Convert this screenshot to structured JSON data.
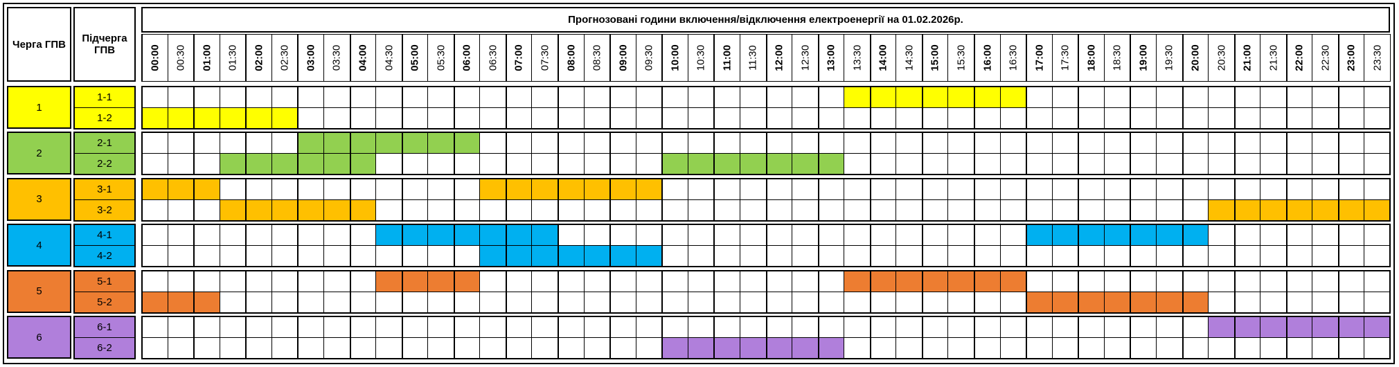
{
  "header": {
    "queue_label": "Черга ГПВ",
    "subqueue_label": "Підчерга ГПВ",
    "title": "Прогнозовані години включення/відключення електроенергії на 01.02.2026р."
  },
  "times": [
    "00:00",
    "00:30",
    "01:00",
    "01:30",
    "02:00",
    "02:30",
    "03:00",
    "03:30",
    "04:00",
    "04:30",
    "05:00",
    "05:30",
    "06:00",
    "06:30",
    "07:00",
    "07:30",
    "08:00",
    "08:30",
    "09:00",
    "09:30",
    "10:00",
    "10:30",
    "11:00",
    "11:30",
    "12:00",
    "12:30",
    "13:00",
    "13:30",
    "14:00",
    "14:30",
    "15:00",
    "15:30",
    "16:00",
    "16:30",
    "17:00",
    "17:30",
    "18:00",
    "18:30",
    "19:00",
    "19:30",
    "20:00",
    "20:30",
    "21:00",
    "21:30",
    "22:00",
    "22:30",
    "23:00",
    "23:30"
  ],
  "groups": [
    {
      "name": "1",
      "color": "#ffff00",
      "subqueues": [
        {
          "name": "1-1",
          "slots": [
            0,
            0,
            0,
            0,
            0,
            0,
            0,
            0,
            0,
            0,
            0,
            0,
            0,
            0,
            0,
            0,
            0,
            0,
            0,
            0,
            0,
            0,
            0,
            0,
            0,
            0,
            0,
            1,
            1,
            1,
            1,
            1,
            1,
            1,
            0,
            0,
            0,
            0,
            0,
            0,
            0,
            0,
            0,
            0,
            0,
            0,
            0,
            0
          ]
        },
        {
          "name": "1-2",
          "slots": [
            1,
            1,
            1,
            1,
            1,
            1,
            0,
            0,
            0,
            0,
            0,
            0,
            0,
            0,
            0,
            0,
            0,
            0,
            0,
            0,
            0,
            0,
            0,
            0,
            0,
            0,
            0,
            0,
            0,
            0,
            0,
            0,
            0,
            0,
            0,
            0,
            0,
            0,
            0,
            0,
            0,
            0,
            0,
            0,
            0,
            0,
            0,
            0
          ]
        }
      ]
    },
    {
      "name": "2",
      "color": "#92d050",
      "subqueues": [
        {
          "name": "2-1",
          "slots": [
            0,
            0,
            0,
            0,
            0,
            0,
            1,
            1,
            1,
            1,
            1,
            1,
            1,
            0,
            0,
            0,
            0,
            0,
            0,
            0,
            0,
            0,
            0,
            0,
            0,
            0,
            0,
            0,
            0,
            0,
            0,
            0,
            0,
            0,
            0,
            0,
            0,
            0,
            0,
            0,
            0,
            0,
            0,
            0,
            0,
            0,
            0,
            0
          ]
        },
        {
          "name": "2-2",
          "slots": [
            0,
            0,
            0,
            1,
            1,
            1,
            1,
            1,
            1,
            0,
            0,
            0,
            0,
            0,
            0,
            0,
            0,
            0,
            0,
            0,
            1,
            1,
            1,
            1,
            1,
            1,
            1,
            0,
            0,
            0,
            0,
            0,
            0,
            0,
            0,
            0,
            0,
            0,
            0,
            0,
            0,
            0,
            0,
            0,
            0,
            0,
            0,
            0
          ]
        }
      ]
    },
    {
      "name": "3",
      "color": "#ffc000",
      "subqueues": [
        {
          "name": "3-1",
          "slots": [
            1,
            1,
            1,
            0,
            0,
            0,
            0,
            0,
            0,
            0,
            0,
            0,
            0,
            1,
            1,
            1,
            1,
            1,
            1,
            1,
            0,
            0,
            0,
            0,
            0,
            0,
            0,
            0,
            0,
            0,
            0,
            0,
            0,
            0,
            0,
            0,
            0,
            0,
            0,
            0,
            0,
            0,
            0,
            0,
            0,
            0,
            0,
            0
          ]
        },
        {
          "name": "3-2",
          "slots": [
            0,
            0,
            0,
            1,
            1,
            1,
            1,
            1,
            1,
            0,
            0,
            0,
            0,
            0,
            0,
            0,
            0,
            0,
            0,
            0,
            0,
            0,
            0,
            0,
            0,
            0,
            0,
            0,
            0,
            0,
            0,
            0,
            0,
            0,
            0,
            0,
            0,
            0,
            0,
            0,
            0,
            1,
            1,
            1,
            1,
            1,
            1,
            1
          ]
        }
      ]
    },
    {
      "name": "4",
      "color": "#00b0f0",
      "subqueues": [
        {
          "name": "4-1",
          "slots": [
            0,
            0,
            0,
            0,
            0,
            0,
            0,
            0,
            0,
            1,
            1,
            1,
            1,
            1,
            1,
            1,
            0,
            0,
            0,
            0,
            0,
            0,
            0,
            0,
            0,
            0,
            0,
            0,
            0,
            0,
            0,
            0,
            0,
            0,
            1,
            1,
            1,
            1,
            1,
            1,
            1,
            0,
            0,
            0,
            0,
            0,
            0,
            0
          ]
        },
        {
          "name": "4-2",
          "slots": [
            0,
            0,
            0,
            0,
            0,
            0,
            0,
            0,
            0,
            0,
            0,
            0,
            0,
            1,
            1,
            1,
            1,
            1,
            1,
            1,
            0,
            0,
            0,
            0,
            0,
            0,
            0,
            0,
            0,
            0,
            0,
            0,
            0,
            0,
            0,
            0,
            0,
            0,
            0,
            0,
            0,
            0,
            0,
            0,
            0,
            0,
            0,
            0
          ]
        }
      ]
    },
    {
      "name": "5",
      "color": "#ed7d31",
      "subqueues": [
        {
          "name": "5-1",
          "slots": [
            0,
            0,
            0,
            0,
            0,
            0,
            0,
            0,
            0,
            1,
            1,
            1,
            1,
            0,
            0,
            0,
            0,
            0,
            0,
            0,
            0,
            0,
            0,
            0,
            0,
            0,
            0,
            1,
            1,
            1,
            1,
            1,
            1,
            1,
            0,
            0,
            0,
            0,
            0,
            0,
            0,
            0,
            0,
            0,
            0,
            0,
            0,
            0
          ]
        },
        {
          "name": "5-2",
          "slots": [
            1,
            1,
            1,
            0,
            0,
            0,
            0,
            0,
            0,
            0,
            0,
            0,
            0,
            0,
            0,
            0,
            0,
            0,
            0,
            0,
            0,
            0,
            0,
            0,
            0,
            0,
            0,
            0,
            0,
            0,
            0,
            0,
            0,
            0,
            1,
            1,
            1,
            1,
            1,
            1,
            1,
            0,
            0,
            0,
            0,
            0,
            0,
            0
          ]
        }
      ]
    },
    {
      "name": "6",
      "color": "#b07fdb",
      "subqueues": [
        {
          "name": "6-1",
          "slots": [
            0,
            0,
            0,
            0,
            0,
            0,
            0,
            0,
            0,
            0,
            0,
            0,
            0,
            0,
            0,
            0,
            0,
            0,
            0,
            0,
            0,
            0,
            0,
            0,
            0,
            0,
            0,
            0,
            0,
            0,
            0,
            0,
            0,
            0,
            0,
            0,
            0,
            0,
            0,
            0,
            0,
            1,
            1,
            1,
            1,
            1,
            1,
            1
          ]
        },
        {
          "name": "6-2",
          "slots": [
            0,
            0,
            0,
            0,
            0,
            0,
            0,
            0,
            0,
            0,
            0,
            0,
            0,
            0,
            0,
            0,
            0,
            0,
            0,
            0,
            1,
            1,
            1,
            1,
            1,
            1,
            1,
            0,
            0,
            0,
            0,
            0,
            0,
            0,
            0,
            0,
            0,
            0,
            0,
            0,
            0,
            0,
            0,
            0,
            0,
            0,
            0,
            0
          ]
        }
      ]
    }
  ]
}
